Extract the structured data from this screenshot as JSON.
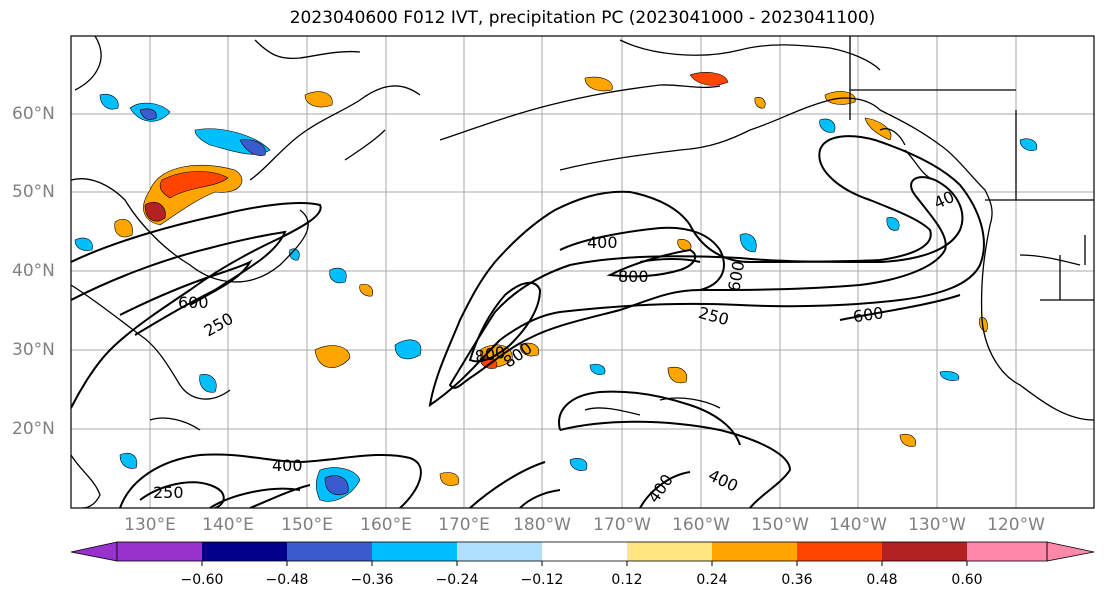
{
  "title": "2023040600 F012 IVT, precipitation PC (2023041000 - 2023041100)",
  "lat_labels": [
    "60°N",
    "50°N",
    "40°N",
    "30°N",
    "20°N"
  ],
  "lon_labels": [
    "130°E",
    "140°E",
    "150°E",
    "160°E",
    "170°E",
    "180°W",
    "170°W",
    "160°W",
    "150°W",
    "140°W",
    "130°W",
    "120°W"
  ],
  "contour_labels": [
    {
      "text": "400",
      "id": "c1"
    },
    {
      "text": "800",
      "id": "c2"
    },
    {
      "text": "600",
      "id": "c3"
    },
    {
      "text": "250",
      "id": "c4"
    },
    {
      "text": "600",
      "id": "c5"
    },
    {
      "text": "40",
      "id": "c6"
    },
    {
      "text": "800",
      "id": "c7"
    },
    {
      "text": "800",
      "id": "c8"
    },
    {
      "text": "600",
      "id": "c9"
    },
    {
      "text": "250",
      "id": "c10"
    },
    {
      "text": "400",
      "id": "c11"
    },
    {
      "text": "250",
      "id": "c12"
    },
    {
      "text": "400",
      "id": "c13"
    },
    {
      "text": "400",
      "id": "c14"
    }
  ],
  "colorbar": {
    "ticks": [
      "−0.60",
      "−0.48",
      "−0.36",
      "−0.24",
      "−0.12",
      "0.12",
      "0.24",
      "0.36",
      "0.48",
      "0.60"
    ],
    "colors": [
      "#9932cc",
      "#00008b",
      "#3a5bcd",
      "#00bfff",
      "#b0e0ff",
      "#ffffff",
      "#ffe680",
      "#ffa500",
      "#ff4500",
      "#b22222",
      "#ff88aa"
    ]
  }
}
